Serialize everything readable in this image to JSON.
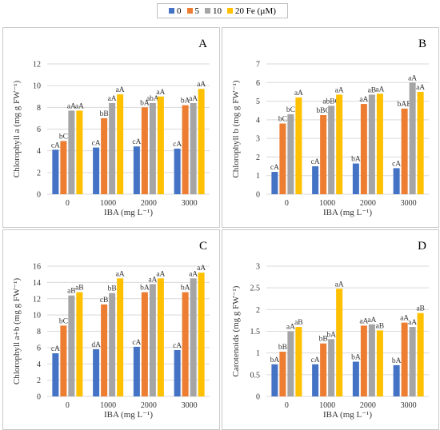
{
  "legend": [
    {
      "label": "0",
      "color": "#4472C4"
    },
    {
      "label": "5",
      "color": "#ED7D31"
    },
    {
      "label": "10",
      "color": "#A5A5A5"
    },
    {
      "label": "20 Fe (µM)",
      "color": "#FFC000"
    }
  ],
  "chart_data": [
    {
      "type": "bar",
      "panel": "A",
      "xlabel": "IBA (mg L⁻¹)",
      "ylabel": "Chlorophyll a (mg g FW⁻¹)",
      "categories": [
        "0",
        "1000",
        "2000",
        "3000"
      ],
      "ylim": [
        0,
        12
      ],
      "yticks": [
        "0",
        "2",
        "4",
        "6",
        "8",
        "10",
        "12"
      ],
      "series": [
        {
          "name": "0",
          "values": [
            4.1,
            4.3,
            4.4,
            4.2
          ],
          "labels": [
            "cA",
            "cA",
            "cA",
            "cA"
          ]
        },
        {
          "name": "5",
          "values": [
            4.9,
            7.0,
            8.0,
            8.2
          ],
          "labels": [
            "bC",
            "bB",
            "bA",
            "bA"
          ]
        },
        {
          "name": "10",
          "values": [
            7.7,
            8.4,
            8.4,
            8.4
          ],
          "labels": [
            "aA",
            "aA",
            "abA",
            "aA"
          ]
        },
        {
          "name": "20 Fe (µM)",
          "values": [
            7.7,
            9.2,
            9.0,
            9.7
          ],
          "labels": [
            "aA",
            "aA",
            "aA",
            "aA"
          ]
        }
      ]
    },
    {
      "type": "bar",
      "panel": "B",
      "xlabel": "IBA (mg L⁻¹)",
      "ylabel": "Chlorophyll b (mg g FW⁻¹)",
      "categories": [
        "0",
        "1000",
        "2000",
        "3000"
      ],
      "ylim": [
        0,
        7
      ],
      "yticks": [
        "0",
        "1",
        "2",
        "3",
        "4",
        "5",
        "6",
        "7"
      ],
      "series": [
        {
          "name": "0",
          "values": [
            1.2,
            1.5,
            1.65,
            1.4
          ],
          "labels": [
            "cA",
            "cA",
            "bA",
            "cA"
          ]
        },
        {
          "name": "5",
          "values": [
            3.8,
            4.25,
            4.85,
            4.6
          ],
          "labels": [
            "bC",
            "bBC",
            "aA",
            "bAB"
          ]
        },
        {
          "name": "10",
          "values": [
            4.3,
            4.75,
            5.35,
            6.0
          ],
          "labels": [
            "bC",
            "abBC",
            "aB",
            "aA"
          ]
        },
        {
          "name": "20 Fe (µM)",
          "values": [
            5.2,
            5.35,
            5.4,
            5.5
          ],
          "labels": [
            "aA",
            "aA",
            "aA",
            "aA"
          ]
        }
      ]
    },
    {
      "type": "bar",
      "panel": "C",
      "xlabel": "IBA (mg L⁻¹)",
      "ylabel": "Chlorophyll a+b (mg g FW⁻¹)",
      "categories": [
        "0",
        "1000",
        "2000",
        "3000"
      ],
      "ylim": [
        0,
        16
      ],
      "yticks": [
        "0",
        "2",
        "4",
        "6",
        "8",
        "10",
        "12",
        "14",
        "16"
      ],
      "series": [
        {
          "name": "0",
          "values": [
            5.3,
            5.8,
            6.1,
            5.7
          ],
          "labels": [
            "cA",
            "dA",
            "cA",
            "cA"
          ]
        },
        {
          "name": "5",
          "values": [
            8.7,
            11.3,
            12.8,
            12.8
          ],
          "labels": [
            "bC",
            "cB",
            "bA",
            "bA"
          ]
        },
        {
          "name": "10",
          "values": [
            12.4,
            12.7,
            13.8,
            14.5
          ],
          "labels": [
            "aB",
            "bB",
            "aA",
            "aA"
          ]
        },
        {
          "name": "20 Fe (µM)",
          "values": [
            12.8,
            14.5,
            14.5,
            15.2
          ],
          "labels": [
            "aB",
            "aA",
            "aA",
            "aA"
          ]
        }
      ]
    },
    {
      "type": "bar",
      "panel": "D",
      "xlabel": "IBA (mg L⁻¹)",
      "ylabel": "Carotenoids (mg g FW⁻¹)",
      "categories": [
        "0",
        "1000",
        "2000",
        "3000"
      ],
      "ylim": [
        0,
        3
      ],
      "yticks": [
        "0",
        "0.5",
        "1",
        "1.5",
        "2",
        "2.5",
        "3"
      ],
      "series": [
        {
          "name": "0",
          "values": [
            0.74,
            0.74,
            0.8,
            0.72
          ],
          "labels": [
            "bA",
            "cA",
            "bA",
            "bA"
          ]
        },
        {
          "name": "5",
          "values": [
            1.03,
            1.22,
            1.63,
            1.7
          ],
          "labels": [
            "bB",
            "bB",
            "aA",
            "aA"
          ]
        },
        {
          "name": "10",
          "values": [
            1.5,
            1.32,
            1.66,
            1.6
          ],
          "labels": [
            "aA",
            "bA",
            "aA",
            "aA"
          ]
        },
        {
          "name": "20 Fe (µM)",
          "values": [
            1.6,
            2.48,
            1.52,
            1.92
          ],
          "labels": [
            "aB",
            "aA",
            "aB",
            "aB"
          ]
        }
      ]
    }
  ]
}
